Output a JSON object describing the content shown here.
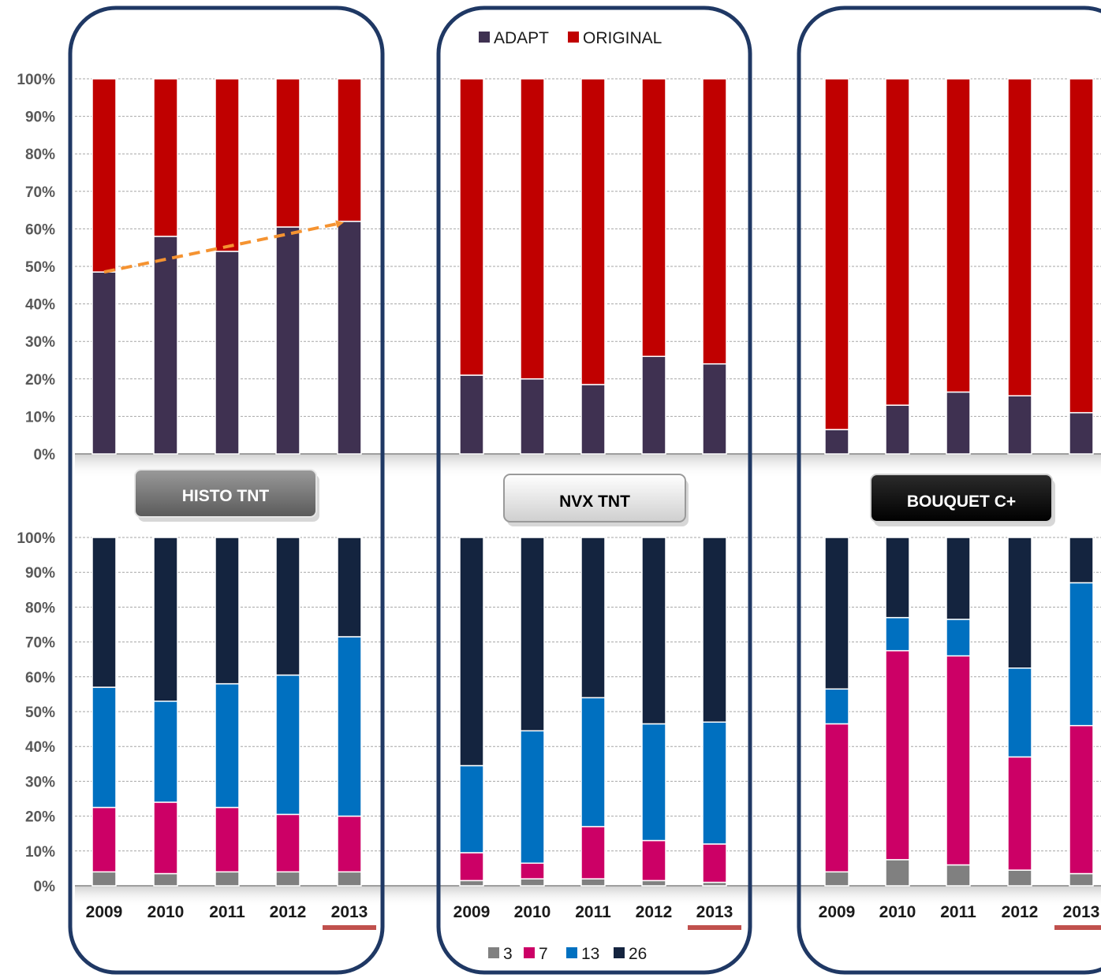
{
  "legend_top": [
    {
      "label": "ADAPT",
      "color": "#3f3151"
    },
    {
      "label": "ORIGINAL",
      "color": "#c00000"
    }
  ],
  "legend_bottom": [
    {
      "label": "3",
      "color": "#808080"
    },
    {
      "label": "7",
      "color": "#cc0066"
    },
    {
      "label": "13",
      "color": "#0070c0"
    },
    {
      "label": "26",
      "color": "#14243f"
    }
  ],
  "groups": [
    {
      "label": "HISTO TNT",
      "style": "gray"
    },
    {
      "label": "NVX TNT",
      "style": "light"
    },
    {
      "label": "BOUQUET C+",
      "style": "black"
    }
  ],
  "highlighted_year": "2013",
  "chart_data": [
    {
      "type": "bar",
      "stacked": true,
      "percent": true,
      "group": "HISTO TNT",
      "panel": "top",
      "categories": [
        "2009",
        "2010",
        "2011",
        "2012",
        "2013"
      ],
      "ylim": [
        0,
        100
      ],
      "yticks": [
        "0%",
        "10%",
        "20%",
        "30%",
        "40%",
        "50%",
        "60%",
        "70%",
        "80%",
        "90%",
        "100%"
      ],
      "series": [
        {
          "name": "ADAPT",
          "color": "#3f3151",
          "values": [
            48.5,
            58,
            54,
            60.5,
            62
          ]
        },
        {
          "name": "ORIGINAL",
          "color": "#c00000",
          "values": [
            51.5,
            42,
            46,
            39.5,
            38
          ]
        }
      ],
      "annotation": "dashed orange trend arrow over ADAPT from 2009 to 2013"
    },
    {
      "type": "bar",
      "stacked": true,
      "percent": true,
      "group": "NVX TNT",
      "panel": "top",
      "categories": [
        "2009",
        "2010",
        "2011",
        "2012",
        "2013"
      ],
      "ylim": [
        0,
        100
      ],
      "series": [
        {
          "name": "ADAPT",
          "color": "#3f3151",
          "values": [
            21,
            20,
            18.5,
            26,
            24
          ]
        },
        {
          "name": "ORIGINAL",
          "color": "#c00000",
          "values": [
            79,
            80,
            81.5,
            74,
            76
          ]
        }
      ]
    },
    {
      "type": "bar",
      "stacked": true,
      "percent": true,
      "group": "BOUQUET C+",
      "panel": "top",
      "categories": [
        "2009",
        "2010",
        "2011",
        "2012",
        "2013"
      ],
      "ylim": [
        0,
        100
      ],
      "series": [
        {
          "name": "ADAPT",
          "color": "#3f3151",
          "values": [
            6.5,
            13,
            16.5,
            15.5,
            11
          ]
        },
        {
          "name": "ORIGINAL",
          "color": "#c00000",
          "values": [
            93.5,
            87,
            83.5,
            84.5,
            89
          ]
        }
      ]
    },
    {
      "type": "bar",
      "stacked": true,
      "percent": true,
      "group": "HISTO TNT",
      "panel": "bottom",
      "categories": [
        "2009",
        "2010",
        "2011",
        "2012",
        "2013"
      ],
      "ylim": [
        0,
        100
      ],
      "yticks": [
        "0%",
        "10%",
        "20%",
        "30%",
        "40%",
        "50%",
        "60%",
        "70%",
        "80%",
        "90%",
        "100%"
      ],
      "series": [
        {
          "name": "3",
          "color": "#808080",
          "values": [
            4,
            3.5,
            4,
            4,
            4
          ]
        },
        {
          "name": "7",
          "color": "#cc0066",
          "values": [
            18.5,
            20.5,
            18.5,
            16.5,
            16
          ]
        },
        {
          "name": "13",
          "color": "#0070c0",
          "values": [
            34.5,
            29,
            35.5,
            40,
            51.5
          ]
        },
        {
          "name": "26",
          "color": "#14243f",
          "values": [
            43,
            47,
            42,
            39.5,
            28.5
          ]
        }
      ]
    },
    {
      "type": "bar",
      "stacked": true,
      "percent": true,
      "group": "NVX TNT",
      "panel": "bottom",
      "categories": [
        "2009",
        "2010",
        "2011",
        "2012",
        "2013"
      ],
      "ylim": [
        0,
        100
      ],
      "series": [
        {
          "name": "3",
          "color": "#808080",
          "values": [
            1.5,
            2,
            2,
            1.5,
            1
          ]
        },
        {
          "name": "7",
          "color": "#cc0066",
          "values": [
            8,
            4.5,
            15,
            11.5,
            11
          ]
        },
        {
          "name": "13",
          "color": "#0070c0",
          "values": [
            25,
            38,
            37,
            33.5,
            35
          ]
        },
        {
          "name": "26",
          "color": "#14243f",
          "values": [
            65.5,
            55.5,
            46,
            53.5,
            53
          ]
        }
      ]
    },
    {
      "type": "bar",
      "stacked": true,
      "percent": true,
      "group": "BOUQUET C+",
      "panel": "bottom",
      "categories": [
        "2009",
        "2010",
        "2011",
        "2012",
        "2013"
      ],
      "ylim": [
        0,
        100
      ],
      "series": [
        {
          "name": "3",
          "color": "#808080",
          "values": [
            4,
            7.5,
            6,
            4.5,
            3.5
          ]
        },
        {
          "name": "7",
          "color": "#cc0066",
          "values": [
            42.5,
            60,
            60,
            32.5,
            42.5
          ]
        },
        {
          "name": "13",
          "color": "#0070c0",
          "values": [
            10,
            9.5,
            10.5,
            25.5,
            41
          ]
        },
        {
          "name": "26",
          "color": "#14243f",
          "values": [
            43.5,
            23,
            23.5,
            37.5,
            13
          ]
        }
      ]
    }
  ]
}
